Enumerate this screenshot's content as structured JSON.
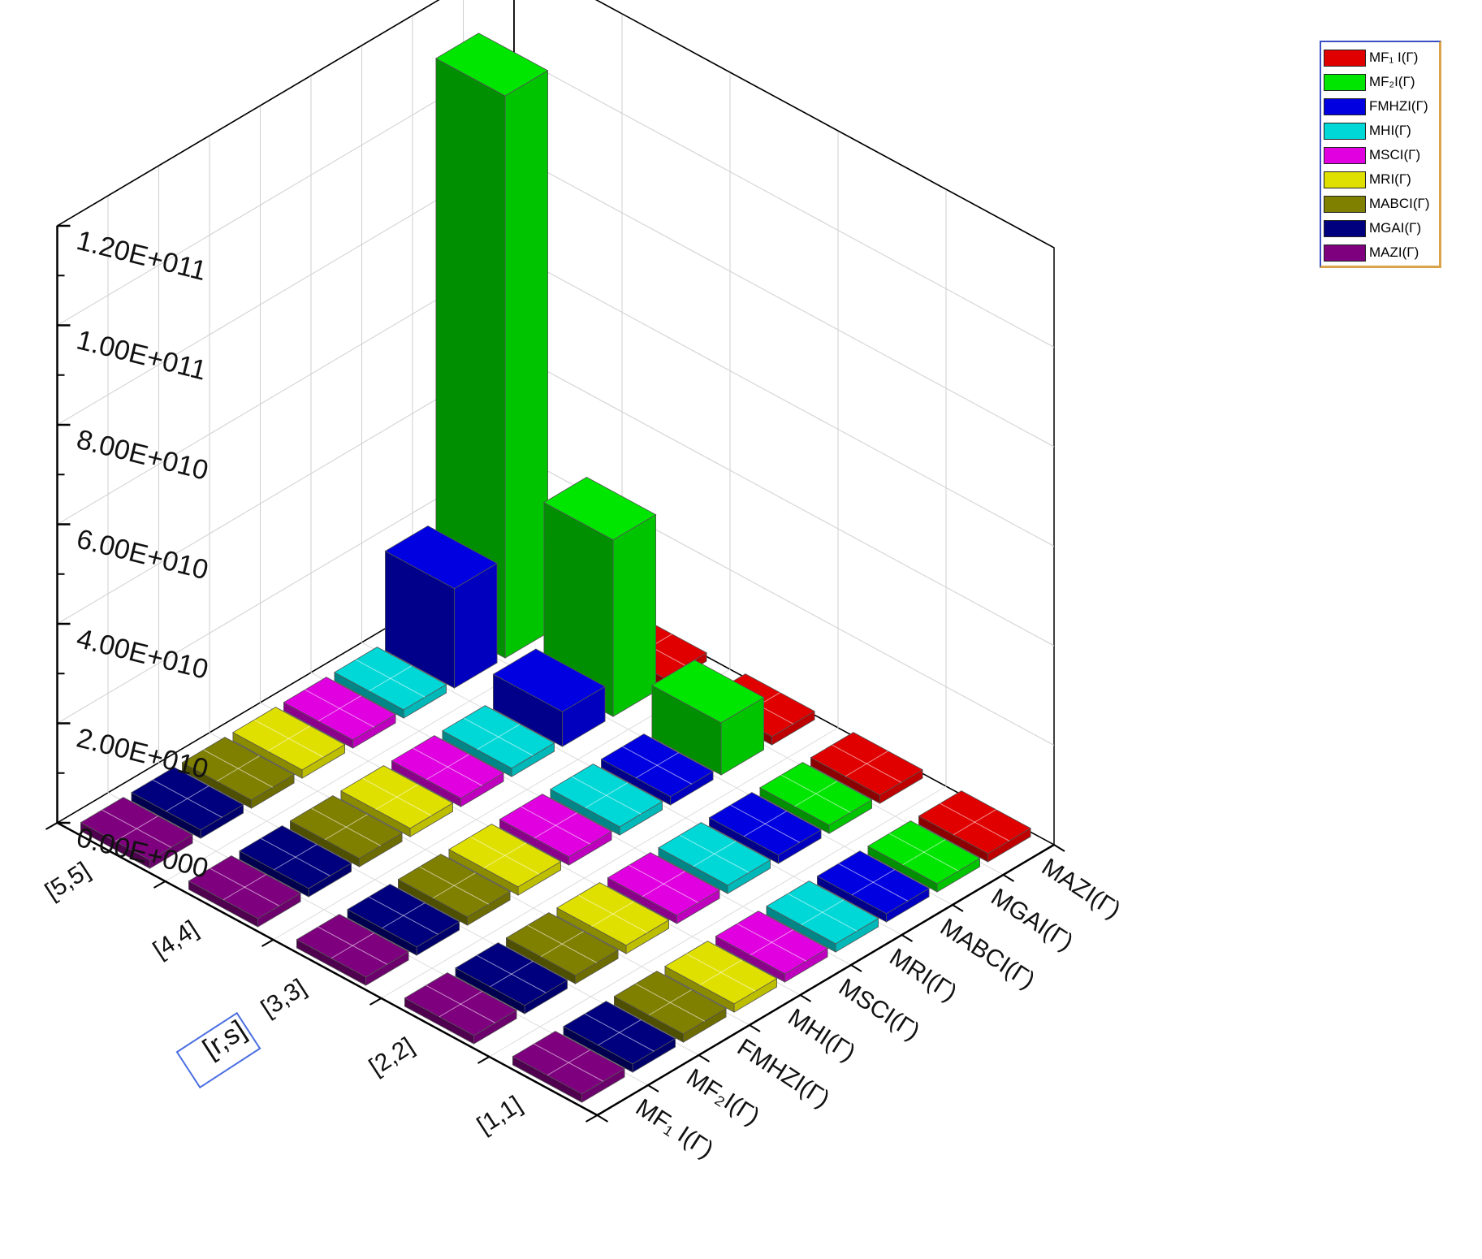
{
  "chart_data": {
    "type": "bar3d",
    "title": "",
    "xlabel": "[r,s]",
    "ylabel": "",
    "zlabel": "",
    "categories": [
      "[1,1]",
      "[2,2]",
      "[3,3]",
      "[4,4]",
      "[5,5]"
    ],
    "series": [
      {
        "name": "MF₁ I(Γ)",
        "axis_label": "MF₁ I(Γ)",
        "color": "#e00000",
        "values": [
          0,
          0,
          0,
          0,
          1500000000.0
        ]
      },
      {
        "name": "MF₂I(Γ)",
        "axis_label": "MF₂I(Γ)",
        "color": "#00e600",
        "values": [
          800000000.0,
          1500000000.0,
          10500000000.0,
          35500000000.0,
          113000000000.0
        ]
      },
      {
        "name": "FMHZI(Γ)",
        "axis_label": "FMHZI(Γ)",
        "color": "#0000e0",
        "values": [
          0,
          0,
          1000000000.0,
          7000000000.0,
          20000000000.0
        ]
      },
      {
        "name": "MHI(Γ)",
        "axis_label": "MHI(Γ)",
        "color": "#00d8d8",
        "values": [
          0,
          0,
          0,
          0,
          0
        ]
      },
      {
        "name": "MSCI(Γ)",
        "axis_label": "MSCI(Γ)",
        "color": "#e000e0",
        "values": [
          0,
          0,
          0,
          0,
          0
        ]
      },
      {
        "name": "MRI(Γ)",
        "axis_label": "MRI(Γ)",
        "color": "#e0e000",
        "values": [
          0,
          0,
          0,
          0,
          0
        ]
      },
      {
        "name": "MABCI(Γ)",
        "axis_label": "MABCI(Γ)",
        "color": "#7f7f00",
        "values": [
          0,
          0,
          0,
          0,
          0
        ]
      },
      {
        "name": "MGAI(Γ)",
        "axis_label": "MGAI(Γ)",
        "color": "#00007f",
        "values": [
          0,
          0,
          0,
          0,
          0
        ]
      },
      {
        "name": "MAZI(Γ)",
        "axis_label": "MAZI(Γ)",
        "color": "#7f007f",
        "values": [
          0,
          0,
          0,
          0,
          0
        ]
      }
    ],
    "zticks": [
      "0.00E+000",
      "2.00E+010",
      "4.00E+010",
      "6.00E+010",
      "8.00E+010",
      "1.00E+011",
      "1.20E+011"
    ],
    "zlim": [
      0,
      120000000000.0
    ],
    "grid": true,
    "legend_position": "top-right"
  }
}
